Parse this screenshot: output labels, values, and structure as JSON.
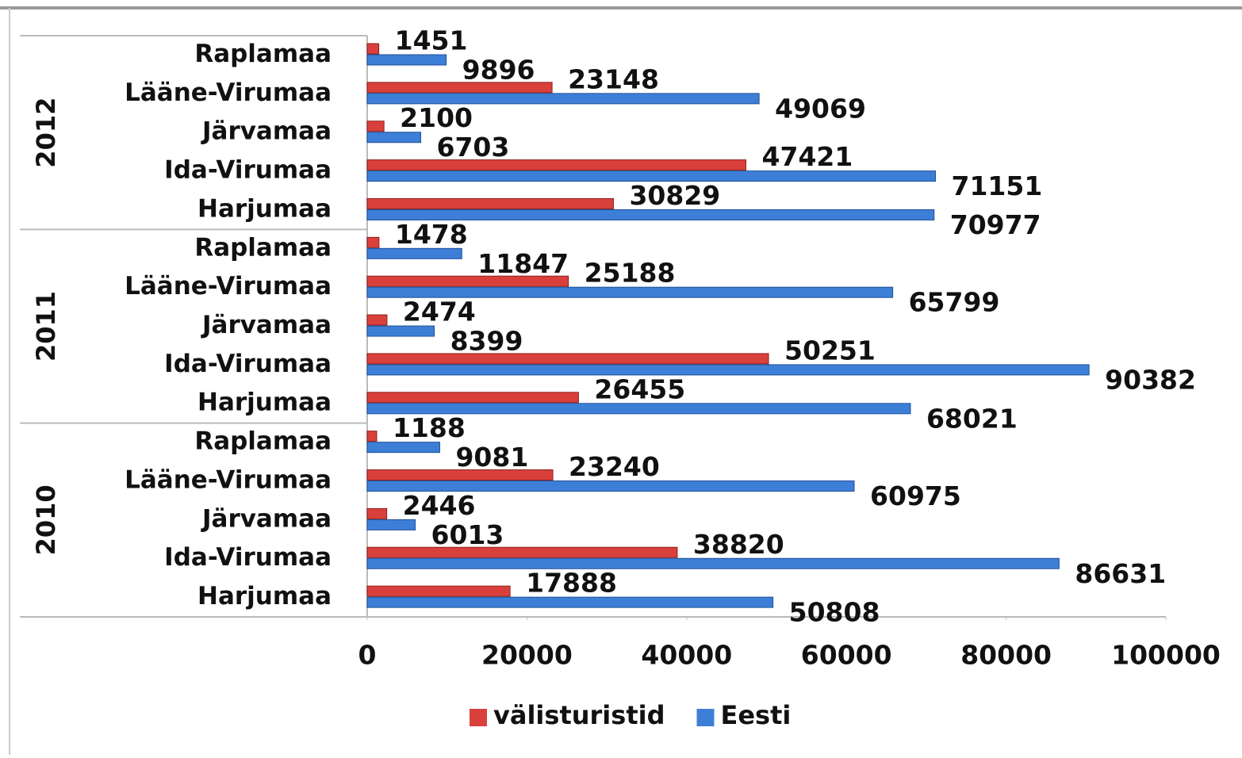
{
  "chart_data": {
    "type": "bar",
    "orientation": "horizontal",
    "categories": [
      "Harjumaa",
      "Ida-Virumaa",
      "Järvamaa",
      "Lääne-Virumaa",
      "Raplamaa",
      "Harjumaa",
      "Ida-Virumaa",
      "Järvamaa",
      "Lääne-Virumaa",
      "Raplamaa",
      "Harjumaa",
      "Ida-Virumaa",
      "Järvamaa",
      "Lääne-Virumaa",
      "Raplamaa"
    ],
    "group_labels": [
      "2010",
      "2011",
      "2012"
    ],
    "series": [
      {
        "name": "välisturistid",
        "color": "#d9403c",
        "values": [
          17888,
          38820,
          2446,
          23240,
          1188,
          26455,
          50251,
          2474,
          25188,
          1478,
          30829,
          47421,
          2100,
          23148,
          1451
        ]
      },
      {
        "name": "Eesti",
        "color": "#3d7fd6",
        "values": [
          50808,
          86631,
          6013,
          60975,
          9081,
          68021,
          90382,
          8399,
          65799,
          11847,
          70977,
          71151,
          6703,
          49069,
          9896
        ]
      }
    ],
    "xlim": [
      0,
      100000
    ],
    "xticks": [
      0,
      20000,
      40000,
      60000,
      80000,
      100000
    ],
    "legend": "bottom"
  }
}
